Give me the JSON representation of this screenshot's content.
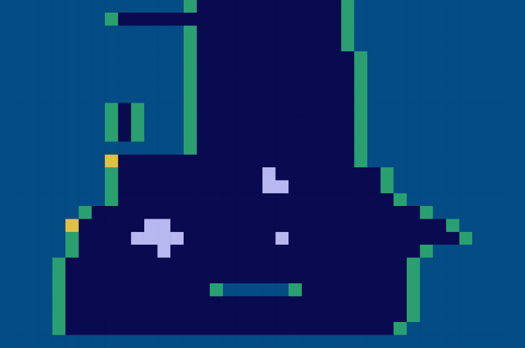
{
  "chart_data": {
    "type": "heatmap",
    "tick_labels": false,
    "color_range": [
      0,
      10
    ],
    "cells": [
      [
        5,
        5,
        5,
        5,
        5,
        5,
        5,
        5,
        5,
        5,
        5,
        5,
        5,
        5,
        7,
        1,
        1,
        1,
        1,
        1,
        1,
        1,
        1,
        1,
        1,
        1,
        7,
        5,
        5,
        5,
        5,
        5,
        5,
        5,
        5,
        5,
        5,
        5,
        5,
        5
      ],
      [
        5,
        5,
        5,
        5,
        5,
        5,
        5,
        5,
        7,
        1,
        1,
        1,
        1,
        1,
        1,
        1,
        1,
        1,
        1,
        1,
        1,
        1,
        1,
        1,
        1,
        1,
        7,
        5,
        5,
        5,
        5,
        5,
        5,
        5,
        5,
        5,
        5,
        5,
        5,
        5
      ],
      [
        5,
        5,
        5,
        5,
        5,
        5,
        5,
        5,
        5,
        5,
        5,
        5,
        5,
        5,
        7,
        1,
        1,
        1,
        1,
        1,
        1,
        1,
        1,
        1,
        1,
        1,
        7,
        5,
        5,
        5,
        5,
        5,
        5,
        5,
        5,
        5,
        5,
        5,
        5,
        5
      ],
      [
        5,
        5,
        5,
        5,
        5,
        5,
        5,
        5,
        5,
        5,
        5,
        5,
        5,
        5,
        7,
        1,
        1,
        1,
        1,
        1,
        1,
        1,
        1,
        1,
        1,
        1,
        7,
        5,
        5,
        5,
        5,
        5,
        5,
        5,
        5,
        5,
        5,
        5,
        5,
        5
      ],
      [
        5,
        5,
        5,
        5,
        5,
        5,
        5,
        5,
        5,
        5,
        5,
        5,
        5,
        5,
        7,
        1,
        1,
        1,
        1,
        1,
        1,
        1,
        1,
        1,
        1,
        1,
        1,
        7,
        5,
        5,
        5,
        5,
        5,
        5,
        5,
        5,
        5,
        5,
        5,
        5
      ],
      [
        5,
        5,
        5,
        5,
        5,
        5,
        5,
        5,
        5,
        5,
        5,
        5,
        5,
        5,
        7,
        1,
        1,
        1,
        1,
        1,
        1,
        1,
        1,
        1,
        1,
        1,
        1,
        7,
        5,
        5,
        5,
        5,
        5,
        5,
        5,
        5,
        5,
        5,
        5,
        5
      ],
      [
        5,
        5,
        5,
        5,
        5,
        5,
        5,
        5,
        5,
        5,
        5,
        5,
        5,
        5,
        7,
        1,
        1,
        1,
        1,
        1,
        1,
        1,
        1,
        1,
        1,
        1,
        1,
        7,
        5,
        5,
        5,
        5,
        5,
        5,
        5,
        5,
        5,
        5,
        5,
        5
      ],
      [
        5,
        5,
        5,
        5,
        5,
        5,
        5,
        5,
        5,
        5,
        5,
        5,
        5,
        5,
        7,
        1,
        1,
        1,
        1,
        1,
        1,
        1,
        1,
        1,
        1,
        1,
        1,
        7,
        5,
        5,
        5,
        5,
        5,
        5,
        5,
        5,
        5,
        5,
        5,
        5
      ],
      [
        5,
        5,
        5,
        5,
        5,
        5,
        5,
        5,
        7,
        1,
        7,
        5,
        5,
        5,
        7,
        1,
        1,
        1,
        1,
        1,
        1,
        1,
        1,
        1,
        1,
        1,
        1,
        7,
        5,
        5,
        5,
        5,
        5,
        5,
        5,
        5,
        5,
        5,
        5,
        5
      ],
      [
        5,
        5,
        5,
        5,
        5,
        5,
        5,
        5,
        7,
        1,
        7,
        5,
        5,
        5,
        7,
        1,
        1,
        1,
        1,
        1,
        1,
        1,
        1,
        1,
        1,
        1,
        1,
        7,
        5,
        5,
        5,
        5,
        5,
        5,
        5,
        5,
        5,
        5,
        5,
        5
      ],
      [
        5,
        5,
        5,
        5,
        5,
        5,
        5,
        5,
        7,
        1,
        7,
        5,
        5,
        5,
        7,
        1,
        1,
        1,
        1,
        1,
        1,
        1,
        1,
        1,
        1,
        1,
        1,
        7,
        5,
        5,
        5,
        5,
        5,
        5,
        5,
        5,
        5,
        5,
        5,
        5
      ],
      [
        5,
        5,
        5,
        5,
        5,
        5,
        5,
        5,
        5,
        5,
        5,
        5,
        5,
        5,
        7,
        1,
        1,
        1,
        1,
        1,
        1,
        1,
        1,
        1,
        1,
        1,
        1,
        7,
        5,
        5,
        5,
        5,
        5,
        5,
        5,
        5,
        5,
        5,
        5,
        5
      ],
      [
        5,
        5,
        5,
        5,
        5,
        5,
        5,
        5,
        9,
        1,
        1,
        1,
        1,
        1,
        1,
        1,
        1,
        1,
        1,
        1,
        1,
        1,
        1,
        1,
        1,
        1,
        1,
        7,
        5,
        5,
        5,
        5,
        5,
        5,
        5,
        5,
        5,
        5,
        5,
        5
      ],
      [
        5,
        5,
        5,
        5,
        5,
        5,
        5,
        5,
        7,
        1,
        1,
        1,
        1,
        1,
        1,
        1,
        1,
        1,
        1,
        1,
        3,
        1,
        1,
        1,
        1,
        1,
        1,
        1,
        1,
        7,
        5,
        5,
        5,
        5,
        5,
        5,
        5,
        5,
        5,
        5
      ],
      [
        5,
        5,
        5,
        5,
        5,
        5,
        5,
        5,
        7,
        1,
        1,
        1,
        1,
        1,
        1,
        1,
        1,
        1,
        1,
        1,
        3,
        3,
        1,
        1,
        1,
        1,
        1,
        1,
        1,
        7,
        5,
        5,
        5,
        5,
        5,
        5,
        5,
        5,
        5,
        5
      ],
      [
        5,
        5,
        5,
        5,
        5,
        5,
        5,
        5,
        7,
        1,
        1,
        1,
        1,
        1,
        1,
        1,
        1,
        1,
        1,
        1,
        1,
        1,
        1,
        1,
        1,
        1,
        1,
        1,
        1,
        1,
        7,
        5,
        5,
        5,
        5,
        5,
        5,
        5,
        5,
        5
      ],
      [
        5,
        5,
        5,
        5,
        5,
        5,
        7,
        1,
        1,
        1,
        1,
        1,
        1,
        1,
        1,
        1,
        1,
        1,
        1,
        1,
        1,
        1,
        1,
        1,
        1,
        1,
        1,
        1,
        1,
        1,
        1,
        1,
        7,
        5,
        5,
        5,
        5,
        5,
        5,
        5
      ],
      [
        5,
        5,
        5,
        5,
        5,
        9,
        1,
        1,
        1,
        1,
        1,
        3,
        3,
        1,
        1,
        1,
        1,
        1,
        1,
        1,
        1,
        1,
        1,
        1,
        1,
        1,
        1,
        1,
        1,
        1,
        1,
        1,
        1,
        1,
        7,
        5,
        5,
        5,
        5,
        5
      ],
      [
        5,
        5,
        5,
        5,
        5,
        7,
        1,
        1,
        1,
        1,
        3,
        3,
        3,
        3,
        1,
        1,
        1,
        1,
        1,
        1,
        1,
        3,
        1,
        1,
        1,
        1,
        1,
        1,
        1,
        1,
        1,
        1,
        1,
        1,
        1,
        7,
        5,
        5,
        5,
        5
      ],
      [
        5,
        5,
        5,
        5,
        5,
        7,
        1,
        1,
        1,
        1,
        1,
        1,
        3,
        1,
        1,
        1,
        1,
        1,
        1,
        1,
        1,
        1,
        1,
        1,
        1,
        1,
        1,
        1,
        1,
        1,
        1,
        1,
        7,
        5,
        5,
        5,
        5,
        5,
        5,
        5
      ],
      [
        5,
        5,
        5,
        5,
        7,
        1,
        1,
        1,
        1,
        1,
        1,
        1,
        1,
        1,
        1,
        1,
        1,
        1,
        1,
        1,
        1,
        1,
        1,
        1,
        1,
        1,
        1,
        1,
        1,
        1,
        1,
        7,
        5,
        5,
        5,
        5,
        5,
        5,
        5,
        5
      ],
      [
        5,
        5,
        5,
        5,
        7,
        1,
        1,
        1,
        1,
        1,
        1,
        1,
        1,
        1,
        1,
        1,
        1,
        1,
        1,
        1,
        1,
        1,
        1,
        1,
        1,
        1,
        1,
        1,
        1,
        1,
        1,
        7,
        5,
        5,
        5,
        5,
        5,
        5,
        5,
        5
      ],
      [
        5,
        5,
        5,
        5,
        7,
        1,
        1,
        1,
        1,
        1,
        1,
        1,
        1,
        1,
        1,
        1,
        7,
        5,
        5,
        5,
        5,
        5,
        7,
        1,
        1,
        1,
        1,
        1,
        1,
        1,
        1,
        7,
        5,
        5,
        5,
        5,
        5,
        5,
        5,
        5
      ],
      [
        5,
        5,
        5,
        5,
        7,
        1,
        1,
        1,
        1,
        1,
        1,
        1,
        1,
        1,
        1,
        1,
        1,
        1,
        1,
        1,
        1,
        1,
        1,
        1,
        1,
        1,
        1,
        1,
        1,
        1,
        1,
        7,
        5,
        5,
        5,
        5,
        5,
        5,
        5,
        5
      ],
      [
        5,
        5,
        5,
        5,
        7,
        1,
        1,
        1,
        1,
        1,
        1,
        1,
        1,
        1,
        1,
        1,
        1,
        1,
        1,
        1,
        1,
        1,
        1,
        1,
        1,
        1,
        1,
        1,
        1,
        1,
        1,
        7,
        5,
        5,
        5,
        5,
        5,
        5,
        5,
        5
      ],
      [
        5,
        5,
        5,
        5,
        7,
        1,
        1,
        1,
        1,
        1,
        1,
        1,
        1,
        1,
        1,
        1,
        1,
        1,
        1,
        1,
        1,
        1,
        1,
        1,
        1,
        1,
        1,
        1,
        1,
        1,
        7,
        5,
        5,
        5,
        5,
        5,
        5,
        5,
        5,
        5
      ],
      [
        5,
        5,
        5,
        5,
        5,
        5,
        5,
        5,
        5,
        5,
        5,
        5,
        5,
        5,
        5,
        5,
        5,
        5,
        5,
        5,
        5,
        5,
        5,
        5,
        5,
        5,
        5,
        5,
        5,
        5,
        5,
        5,
        5,
        5,
        5,
        5,
        5,
        5,
        5,
        5
      ]
    ]
  }
}
